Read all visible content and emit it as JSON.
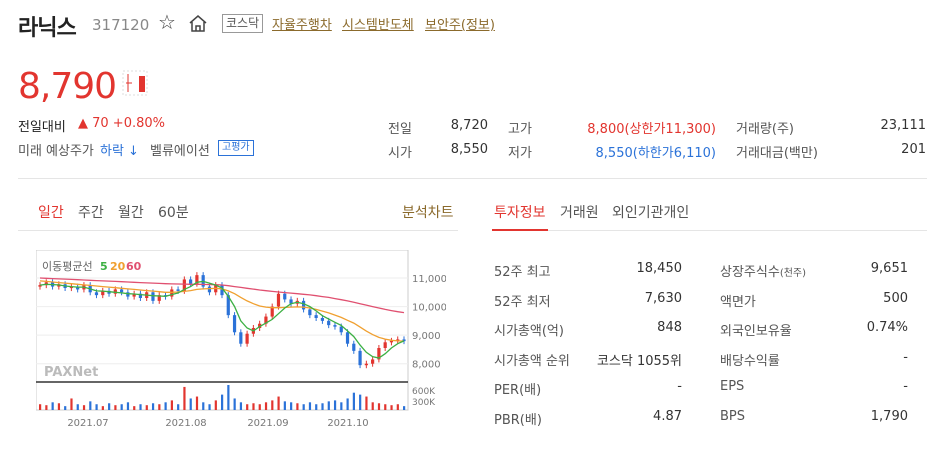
{
  "header": {
    "name": "라닉스",
    "code": "317120",
    "market": "코스닥",
    "themes": [
      "자율주행차",
      "시스템반도체",
      "보안주(정보)"
    ]
  },
  "price": {
    "current": "8,790",
    "change_label": "전일대비",
    "change": "▲ 70 +0.80%",
    "future_label": "미래 예상주가",
    "future": "하락 ↓",
    "valuation_label": "벨류에이션",
    "valuation_badge": "고평가"
  },
  "quote": {
    "rows": [
      [
        {
          "label": "전일",
          "value": "8,720"
        },
        {
          "label": "고가",
          "value": "8,800(상한가11,300)",
          "color": "red"
        },
        {
          "label": "거래량(주)",
          "value": "23,111"
        }
      ],
      [
        {
          "label": "시가",
          "value": "8,550"
        },
        {
          "label": "저가",
          "value": "8,550(하한가6,110)",
          "color": "blue"
        },
        {
          "label": "거래대금(백만)",
          "value": "201"
        }
      ]
    ]
  },
  "chart_tabs": [
    "일간",
    "주간",
    "월간",
    "60분"
  ],
  "chart_tab_active": "일간",
  "analysis_link": "분석차트",
  "info_tabs": [
    "투자정보",
    "거래원",
    "외인기관개인"
  ],
  "info_tab_active": "투자정보",
  "investment": {
    "left": [
      {
        "label": "52주 최고",
        "value": "18,450"
      },
      {
        "label": "52주 최저",
        "value": "7,630"
      },
      {
        "label": "시가총액(억)",
        "value": "848"
      },
      {
        "label": "시가총액 순위",
        "value": "코스닥 1055위"
      },
      {
        "label": "PER(배)",
        "value": "-"
      },
      {
        "label": "PBR(배)",
        "value": "4.87"
      }
    ],
    "right": [
      {
        "label": "상장주식수",
        "unit": "(천주)",
        "value": "9,651"
      },
      {
        "label": "액면가",
        "value": "500"
      },
      {
        "label": "외국인보유율",
        "value": "0.74%"
      },
      {
        "label": "배당수익률",
        "value": "-"
      },
      {
        "label": "EPS",
        "value": "-"
      },
      {
        "label": "BPS",
        "value": "1,790"
      }
    ]
  },
  "chart_data": {
    "type": "line",
    "legend": {
      "label": "이동평균선",
      "periods": [
        "5",
        "20",
        "60"
      ],
      "colors": [
        "#3cb043",
        "#f0a030",
        "#e05070"
      ]
    },
    "y_ticks": [
      "11,000",
      "10,000",
      "9,000",
      "8,000"
    ],
    "ylim": [
      7500,
      11700
    ],
    "vol_ticks": [
      "600K",
      "300K"
    ],
    "x_ticks": [
      "2021.07",
      "2021.08",
      "2021.09",
      "2021.10"
    ],
    "watermark": "PAXNet",
    "price": [
      10750,
      10850,
      10700,
      10780,
      10650,
      10700,
      10600,
      10750,
      10500,
      10400,
      10550,
      10450,
      10600,
      10500,
      10350,
      10450,
      10300,
      10500,
      10200,
      10400,
      10350,
      10600,
      10550,
      10950,
      10800,
      11100,
      10700,
      10500,
      10750,
      10400,
      9700,
      9100,
      8700,
      9050,
      9250,
      9400,
      9650,
      10000,
      10450,
      10250,
      10100,
      10200,
      9900,
      9700,
      9600,
      9500,
      9350,
      9300,
      9100,
      8700,
      8450,
      7950,
      8000,
      8150,
      8550,
      8750,
      8800,
      8850,
      8790
    ],
    "ma5": [
      10750,
      10780,
      10770,
      10760,
      10720,
      10700,
      10680,
      10680,
      10620,
      10550,
      10540,
      10520,
      10500,
      10480,
      10450,
      10440,
      10420,
      10400,
      10380,
      10370,
      10360,
      10420,
      10480,
      10600,
      10700,
      10850,
      10880,
      10820,
      10750,
      10650,
      10360,
      10000,
      9500,
      9250,
      9150,
      9300,
      9420,
      9550,
      9750,
      9950,
      10100,
      10150,
      10100,
      10000,
      9850,
      9680,
      9560,
      9450,
      9340,
      9150,
      8950,
      8650,
      8400,
      8250,
      8200,
      8350,
      8550,
      8700,
      8800
    ],
    "ma20": [
      10900,
      10880,
      10860,
      10840,
      10820,
      10800,
      10780,
      10760,
      10740,
      10720,
      10700,
      10680,
      10660,
      10640,
      10620,
      10600,
      10580,
      10560,
      10540,
      10520,
      10500,
      10500,
      10510,
      10530,
      10560,
      10600,
      10620,
      10630,
      10640,
      10620,
      10550,
      10450,
      10320,
      10200,
      10100,
      10020,
      9980,
      9960,
      9960,
      9970,
      9980,
      9990,
      9980,
      9950,
      9900,
      9840,
      9780,
      9700,
      9620,
      9520,
      9420,
      9280,
      9140,
      9020,
      8920,
      8860,
      8820,
      8800,
      8790
    ],
    "ma60": [
      11000,
      10990,
      10980,
      10970,
      10960,
      10950,
      10940,
      10930,
      10920,
      10910,
      10900,
      10890,
      10880,
      10870,
      10860,
      10850,
      10840,
      10830,
      10820,
      10810,
      10800,
      10795,
      10790,
      10785,
      10780,
      10780,
      10775,
      10770,
      10765,
      10755,
      10730,
      10700,
      10670,
      10640,
      10610,
      10580,
      10555,
      10530,
      10510,
      10490,
      10470,
      10450,
      10430,
      10410,
      10380,
      10350,
      10320,
      10280,
      10240,
      10200,
      10150,
      10100,
      10050,
      10000,
      9950,
      9900,
      9860,
      9820,
      9790
    ],
    "volume": [
      30,
      25,
      40,
      35,
      20,
      60,
      30,
      25,
      45,
      30,
      20,
      35,
      25,
      30,
      40,
      20,
      30,
      25,
      35,
      30,
      40,
      50,
      30,
      120,
      60,
      70,
      40,
      30,
      50,
      80,
      130,
      60,
      40,
      30,
      35,
      30,
      40,
      50,
      70,
      45,
      40,
      35,
      30,
      40,
      30,
      35,
      45,
      50,
      40,
      60,
      90,
      80,
      70,
      40,
      35,
      30,
      25,
      30,
      20
    ]
  }
}
